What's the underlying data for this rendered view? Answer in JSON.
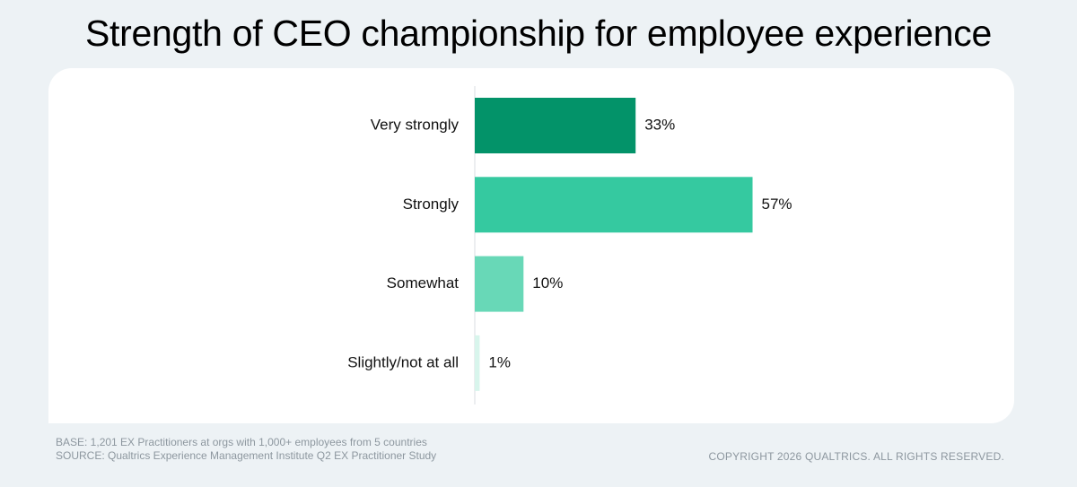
{
  "chart_data": {
    "type": "bar",
    "orientation": "horizontal",
    "title": "Strength of CEO championship for employee experience",
    "categories": [
      "Very strongly",
      "Strongly",
      "Somewhat",
      "Slightly/not at all"
    ],
    "values": [
      33,
      57,
      10,
      1
    ],
    "value_labels": [
      "33%",
      "57%",
      "10%",
      "1%"
    ],
    "colors": [
      "#039369",
      "#35c9a0",
      "#68d8b7",
      "#d8f5ec"
    ],
    "xlim": [
      0,
      100
    ],
    "grid": false,
    "legend": "none"
  },
  "footer": {
    "base": "BASE: 1,201 EX Practitioners at orgs with 1,000+ employees from 5 countries",
    "source": "SOURCE: Qualtrics Experience Management Institute Q2 EX Practitioner Study",
    "copyright": "COPYRIGHT 2026 QUALTRICS. ALL RIGHTS RESERVED."
  }
}
